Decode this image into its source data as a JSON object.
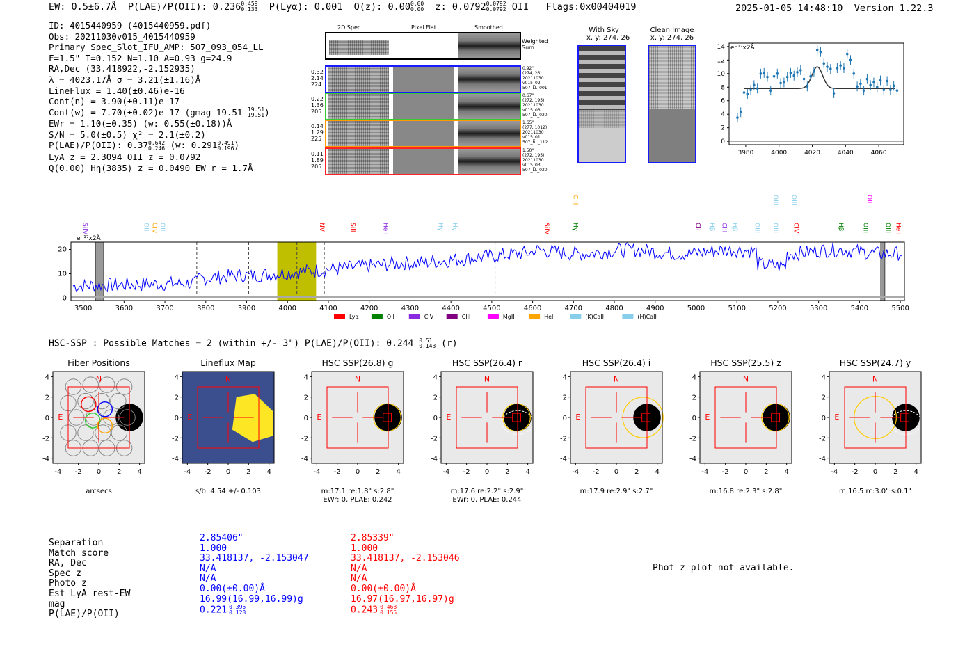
{
  "header": {
    "ew": "EW: 0.5±6.7Å",
    "plae_label": "P(LAE)/P(OII): 0.236",
    "plae_hi": "0.459",
    "plae_lo": "0.133",
    "plya": "P(Lyα): 0.001",
    "qz_label": "Q(z): 0.00",
    "qz_hi": "0.00",
    "qz_lo": "0.00",
    "z_label": "z: 0.0792",
    "z_hi": "0.0792",
    "z_lo": "0.0792",
    "z_line": "OII",
    "flags": "Flags:0x00404019",
    "timestamp": "2025-01-05 14:48:10",
    "version": "Version 1.22.3"
  },
  "info": {
    "id": "ID: 4015440959 (4015440959.pdf)",
    "obs": "Obs: 20211030v015_4015440959",
    "primary": "Primary Spec_Slot_IFU_AMP: 507_093_054_LL",
    "fit": "F=1.5\"  T=0.152  N=1.10  A=0.93  g=24.9",
    "radec": "RA,Dec (33.418922,-2.152935)",
    "lambda": "λ = 4023.17Å  σ = 3.21(±1.16)Å",
    "lineflux": "LineFlux = 1.40(±0.46)e-16",
    "contn": "Cont(n) = 3.90(±0.11)e-17",
    "contw": "Cont(w) = 7.70(±0.02)e-17 (gmag 19.51",
    "contw_hi": "19.51",
    "contw_lo": "19.51",
    "ewr": "EWr = 1.10(±0.35) (w: 0.55(±0.18))Å",
    "sn": "S/N = 5.0(±0.5)  χ² = 2.1(±0.2)",
    "plae": "P(LAE)/P(OII): 0.37",
    "plae_hi": "0.642",
    "plae_lo": "0.246",
    "plae_w": "(w: 0.291",
    "plae_w_hi": "0.491",
    "plae_w_lo": "0.196",
    "lya": "LyA z = 2.3094  OII z = 0.0792",
    "q": "Q(0.00) Hη(3835) z = 0.0490  EW r = 1.7Å"
  },
  "cutouts": {
    "col_titles": [
      "2D Spec",
      "Pixel Flat",
      "Smoothed"
    ],
    "sum_label": "Weighted Sum",
    "rows": [
      {
        "left": [
          "0.32",
          "2.14",
          "224"
        ],
        "right": [
          "0.92\"",
          "(274, 26)",
          "20211030",
          "v015_02",
          "507_LL_001"
        ],
        "color": "#1a1aff"
      },
      {
        "left": [
          "0.22",
          "1.36",
          "205"
        ],
        "right": [
          "0.67\"",
          "(272, 195)",
          "20211030",
          "v015_03",
          "507_LL_020"
        ],
        "color": "#33cc33"
      },
      {
        "left": [
          "0.14",
          "1.29",
          "225"
        ],
        "right": [
          "1.65\"",
          "(277, 1012)",
          "20211030",
          "v015_01",
          "507_RL_112"
        ],
        "color": "#ff9900"
      },
      {
        "left": [
          "0.11",
          "1.89",
          "205"
        ],
        "right": [
          "1.50\"",
          "(272, 195)",
          "20211030",
          "v015_03",
          "507_LL_020"
        ],
        "color": "#ff2222"
      }
    ],
    "with_sky_title": "With Sky",
    "with_sky_coords": "x, y: 274, 26",
    "clean_title": "Clean Image",
    "clean_coords": "x, y: 274, 26"
  },
  "zoom_chart": {
    "unit_label": "e⁻¹⁷x2Å",
    "xticks": [
      "3980",
      "4000",
      "4020",
      "4040",
      "4060"
    ],
    "yticks": [
      "0",
      "2",
      "4",
      "6",
      "8",
      "10",
      "12",
      "14"
    ],
    "x": [
      3975,
      3977,
      3979,
      3981,
      3983,
      3985,
      3987,
      3989,
      3991,
      3993,
      3995,
      3997,
      3999,
      4001,
      4003,
      4005,
      4007,
      4009,
      4011,
      4013,
      4015,
      4017,
      4019,
      4021,
      4023,
      4025,
      4027,
      4029,
      4031,
      4033,
      4035,
      4037,
      4039,
      4041,
      4043,
      4045,
      4047,
      4049,
      4051,
      4053,
      4055,
      4057,
      4059,
      4061,
      4063,
      4065,
      4067,
      4069,
      4071
    ],
    "y": [
      3.5,
      4.3,
      7.2,
      7.0,
      7.6,
      8.3,
      7.8,
      10.0,
      10.1,
      9.5,
      7.5,
      9.6,
      10.0,
      8.6,
      8.7,
      9.5,
      10.1,
      9.7,
      10.2,
      10.5,
      9.2,
      8.1,
      9.6,
      10.3,
      13.5,
      13.2,
      11.5,
      11.0,
      10.7,
      7.1,
      10.8,
      11.2,
      10.8,
      12.9,
      12.0,
      10.0,
      8.1,
      8.5,
      7.5,
      9.2,
      8.3,
      8.7,
      8.0,
      9.0,
      7.6,
      8.9,
      7.6,
      8.2,
      7.5
    ],
    "xlim": [
      3970,
      4075
    ],
    "ylim": [
      -0.5,
      14.5
    ]
  },
  "spectrum": {
    "unit_label": "e⁻¹⁷x2Å",
    "xticks": [
      "3500",
      "3600",
      "3700",
      "3800",
      "3900",
      "4000",
      "4100",
      "4200",
      "4300",
      "4400",
      "4500",
      "4600",
      "4700",
      "4800",
      "4900",
      "5000",
      "5100",
      "5200",
      "5300",
      "5400",
      "5500"
    ],
    "yticks": [
      "0",
      "10",
      "20"
    ],
    "xlim": [
      3470,
      5510
    ],
    "ylim": [
      -1,
      23
    ],
    "line_labels": [
      {
        "t": "SiIV",
        "w": 3500,
        "c": "#8a2be2",
        "lvl": 0
      },
      {
        "t": "OII",
        "w": 3650,
        "c": "#87ceeb",
        "lvl": 0
      },
      {
        "t": "CIV",
        "w": 3670,
        "c": "#ffa500",
        "lvl": 0
      },
      {
        "t": "OII",
        "w": 3690,
        "c": "#87ceeb",
        "lvl": 0
      },
      {
        "t": "NV",
        "w": 4080,
        "c": "#ff0000",
        "lvl": 0
      },
      {
        "t": "SiII",
        "w": 4155,
        "c": "#ff0000",
        "lvl": 0
      },
      {
        "t": "HeII",
        "w": 4235,
        "c": "#8a2be2",
        "lvl": 0
      },
      {
        "t": "Hγ",
        "w": 4370,
        "c": "#87ceeb",
        "lvl": 0
      },
      {
        "t": "Hγ",
        "w": 4405,
        "c": "#87ceeb",
        "lvl": 0
      },
      {
        "t": "SiIV",
        "w": 4630,
        "c": "#ff0000",
        "lvl": 0
      },
      {
        "t": "CIII",
        "w": 4700,
        "c": "#ffa500",
        "lvl": 1
      },
      {
        "t": "Hγ",
        "w": 4700,
        "c": "#008000",
        "lvl": 0
      },
      {
        "t": "CII",
        "w": 5000,
        "c": "#800080",
        "lvl": 0
      },
      {
        "t": "Hβ",
        "w": 5035,
        "c": "#87ceeb",
        "lvl": 0
      },
      {
        "t": "CIII",
        "w": 5065,
        "c": "#8a2be2",
        "lvl": 0
      },
      {
        "t": "Hβ",
        "w": 5090,
        "c": "#87ceeb",
        "lvl": 0
      },
      {
        "t": "OIII",
        "w": 5145,
        "c": "#87ceeb",
        "lvl": 0
      },
      {
        "t": "OIII",
        "w": 5190,
        "c": "#87ceeb",
        "lvl": 1
      },
      {
        "t": "OIII",
        "w": 5190,
        "c": "#87ceeb",
        "lvl": 0
      },
      {
        "t": "OIII",
        "w": 5235,
        "c": "#87ceeb",
        "lvl": 1
      },
      {
        "t": "CIV",
        "w": 5240,
        "c": "#ff0000",
        "lvl": 0
      },
      {
        "t": "Hβ",
        "w": 5350,
        "c": "#008000",
        "lvl": 0
      },
      {
        "t": "OIII",
        "w": 5410,
        "c": "#008000",
        "lvl": 0
      },
      {
        "t": "OII",
        "w": 5420,
        "c": "#ff00ff",
        "lvl": 1
      },
      {
        "t": "OIII",
        "w": 5465,
        "c": "#008000",
        "lvl": 0
      },
      {
        "t": "HeII",
        "w": 5490,
        "c": "#ff0000",
        "lvl": 0
      }
    ],
    "legend": [
      {
        "t": "Lyα",
        "c": "#ff0000"
      },
      {
        "t": "OII",
        "c": "#008000"
      },
      {
        "t": "CIV",
        "c": "#8a2be2"
      },
      {
        "t": "CIII",
        "c": "#800080"
      },
      {
        "t": "MgII",
        "c": "#ff00ff"
      },
      {
        "t": "HeII",
        "c": "#ffa500"
      },
      {
        "t": "(K)CaII",
        "c": "#87ceeb"
      },
      {
        "t": "(H)CaII",
        "c": "#87ceeb"
      }
    ]
  },
  "hsc": {
    "title": "HSC-SSP : Possible Matches = 2 (within +/- 3\")  P(LAE)/P(OII): 0.244",
    "title_hi": "0.51",
    "title_lo": "0.143",
    "title_band": "(r)",
    "ticks": [
      "4",
      "2",
      "0",
      "-2",
      "-4"
    ],
    "xticks": [
      "-4",
      "-2",
      "0",
      "2",
      "4"
    ],
    "n_label": "N",
    "e_label": "E",
    "panels": [
      {
        "title": "Fiber Positions",
        "cap1": "arcsecs",
        "cap2": ""
      },
      {
        "title": "Lineflux Map",
        "cap1": "s/b: 4.54 +/- 0.103",
        "cap2": ""
      },
      {
        "title": "HSC SSP(26.8) g",
        "cap1": "m:17.1  re:1.8\"  s:2.8\"",
        "cap2": "EWr: 0, PLAE: 0.242"
      },
      {
        "title": "HSC SSP(26.4) r",
        "cap1": "m:17.6  re:2.2\"  s:2.9\"",
        "cap2": "EWr: 0, PLAE: 0.244"
      },
      {
        "title": "HSC SSP(26.4) i",
        "cap1": "m:17.9  re:2.9\"  s:2.7\"",
        "cap2": ""
      },
      {
        "title": "HSC SSP(25.5) z",
        "cap1": "m:16.8  re:2.3\"  s:2.8\"",
        "cap2": ""
      },
      {
        "title": "HSC SSP(24.7) y",
        "cap1": "m:16.5  rc:3.0\"  s:0.1\"",
        "cap2": ""
      }
    ]
  },
  "matches": {
    "labels": [
      "Separation",
      "Match score",
      "RA, Dec",
      "Spec z",
      "Photo z",
      "Est LyA rest-EW",
      "mag",
      "P(LAE)/P(OII)"
    ],
    "blue": [
      "2.85406\"",
      "1.000",
      "33.418137, -2.153047",
      "N/A",
      "N/A",
      "0.00(±0.00)Å",
      "16.99(16.99,16.99)g",
      "0.221"
    ],
    "blue_plae_hi": "0.396",
    "blue_plae_lo": "0.128",
    "red": [
      "2.85339\"",
      "1.000",
      "33.418137, -2.153046",
      "N/A",
      "N/A",
      "0.00(±0.00)Å",
      "16.97(16.97,16.97)g",
      "0.243"
    ],
    "red_plae_hi": "0.468",
    "red_plae_lo": "0.155",
    "photz_note": "Phot z plot not available."
  },
  "colors": {
    "blue": "#0000ff",
    "red": "#ff0000",
    "spectrum": "#0000ff",
    "fit": "#333333",
    "marker": "#1f77b4",
    "highlight": "#bfbf00",
    "gold": "#ffcc00"
  }
}
